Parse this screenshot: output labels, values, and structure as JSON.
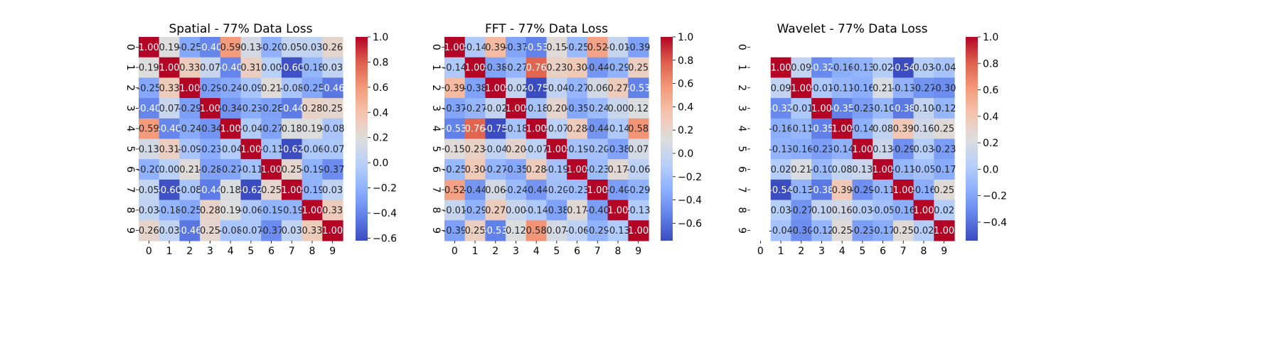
{
  "chart_data": [
    {
      "type": "heatmap",
      "title": "Spatial - 77% Data Loss",
      "x_categories": [
        "0",
        "1",
        "2",
        "3",
        "4",
        "5",
        "6",
        "7",
        "8",
        "9"
      ],
      "y_categories": [
        "0",
        "1",
        "2",
        "3",
        "4",
        "5",
        "6",
        "7",
        "8",
        "9"
      ],
      "vmin": -0.62,
      "vmax": 1.0,
      "colorbar_ticks": [
        -0.6,
        -0.4,
        -0.2,
        0.0,
        0.2,
        0.4,
        0.6,
        0.8,
        1.0
      ],
      "colorbar_tick_labels": [
        "−0.6",
        "−0.4",
        "−0.2",
        "0.0",
        "0.2",
        "0.4",
        "0.6",
        "0.8",
        "1.0"
      ],
      "values": [
        [
          1.0,
          0.19,
          -0.25,
          -0.4,
          0.59,
          0.13,
          -0.2,
          0.05,
          0.03,
          0.26
        ],
        [
          0.19,
          1.0,
          0.33,
          0.07,
          -0.4,
          0.31,
          0.0,
          -0.6,
          -0.18,
          0.03
        ],
        [
          -0.25,
          0.33,
          1.0,
          -0.29,
          -0.24,
          -0.09,
          0.21,
          -0.08,
          -0.25,
          -0.46
        ],
        [
          -0.4,
          0.07,
          -0.29,
          1.0,
          -0.34,
          -0.23,
          -0.28,
          -0.44,
          0.28,
          0.25
        ],
        [
          0.59,
          -0.4,
          -0.24,
          -0.34,
          1.0,
          -0.04,
          -0.27,
          0.18,
          0.19,
          -0.08
        ],
        [
          0.13,
          0.31,
          -0.09,
          -0.23,
          -0.04,
          1.0,
          -0.11,
          -0.62,
          -0.06,
          -0.07
        ],
        [
          -0.2,
          0.0,
          0.21,
          -0.28,
          -0.27,
          -0.11,
          1.0,
          0.25,
          -0.19,
          -0.37
        ],
        [
          0.05,
          -0.6,
          -0.08,
          -0.44,
          0.18,
          -0.62,
          0.25,
          1.0,
          -0.19,
          0.03
        ],
        [
          0.03,
          -0.18,
          -0.25,
          0.28,
          0.19,
          -0.06,
          -0.19,
          -0.19,
          1.0,
          0.33
        ],
        [
          0.26,
          0.03,
          -0.46,
          0.25,
          -0.08,
          -0.07,
          -0.37,
          0.03,
          0.33,
          1.0
        ]
      ]
    },
    {
      "type": "heatmap",
      "title": "FFT - 77% Data Loss",
      "x_categories": [
        "0",
        "1",
        "2",
        "3",
        "4",
        "5",
        "6",
        "7",
        "8",
        "9"
      ],
      "y_categories": [
        "0",
        "1",
        "2",
        "3",
        "4",
        "5",
        "6",
        "7",
        "8",
        "9"
      ],
      "vmin": -0.75,
      "vmax": 1.0,
      "colorbar_ticks": [
        -0.6,
        -0.4,
        -0.2,
        0.0,
        0.2,
        0.4,
        0.6,
        0.8,
        1.0
      ],
      "colorbar_tick_labels": [
        "−0.6",
        "−0.4",
        "−0.2",
        "0.0",
        "0.2",
        "0.4",
        "0.6",
        "0.8",
        "1.0"
      ],
      "values": [
        [
          1.0,
          -0.14,
          0.39,
          -0.37,
          -0.53,
          0.15,
          -0.25,
          0.52,
          -0.01,
          -0.39
        ],
        [
          -0.14,
          1.0,
          -0.38,
          -0.27,
          0.76,
          0.23,
          0.3,
          -0.44,
          -0.29,
          0.25
        ],
        [
          0.39,
          -0.38,
          1.0,
          -0.02,
          -0.75,
          -0.04,
          -0.27,
          0.06,
          0.27,
          -0.53
        ],
        [
          -0.37,
          -0.27,
          -0.02,
          1.0,
          -0.18,
          0.2,
          -0.35,
          -0.24,
          0.0,
          0.12
        ],
        [
          -0.53,
          0.76,
          -0.75,
          -0.18,
          1.0,
          -0.07,
          0.28,
          -0.44,
          -0.14,
          0.58
        ],
        [
          0.15,
          0.23,
          -0.04,
          0.2,
          -0.07,
          1.0,
          -0.19,
          -0.2,
          -0.38,
          0.07
        ],
        [
          -0.25,
          0.3,
          -0.27,
          -0.35,
          0.28,
          -0.19,
          1.0,
          -0.23,
          0.17,
          -0.06
        ],
        [
          0.52,
          -0.44,
          0.06,
          -0.24,
          -0.44,
          -0.2,
          -0.23,
          1.0,
          -0.4,
          -0.29
        ],
        [
          -0.01,
          -0.29,
          0.27,
          0.0,
          -0.14,
          -0.38,
          0.17,
          -0.4,
          1.0,
          -0.13
        ],
        [
          -0.39,
          0.25,
          -0.53,
          0.12,
          0.58,
          0.07,
          -0.06,
          -0.29,
          -0.13,
          1.0
        ]
      ]
    },
    {
      "type": "heatmap",
      "title": "Wavelet - 77% Data Loss",
      "x_categories": [
        "0",
        "1",
        "2",
        "3",
        "4",
        "5",
        "6",
        "7",
        "8",
        "9"
      ],
      "y_categories": [
        "0",
        "1",
        "2",
        "3",
        "4",
        "5",
        "6",
        "7",
        "8",
        "9"
      ],
      "vmin": -0.54,
      "vmax": 1.0,
      "colorbar_ticks": [
        -0.4,
        -0.2,
        0.0,
        0.2,
        0.4,
        0.6,
        0.8,
        1.0
      ],
      "colorbar_tick_labels": [
        "−0.4",
        "−0.2",
        "0.0",
        "0.2",
        "0.4",
        "0.6",
        "0.8",
        "1.0"
      ],
      "values": [
        [
          null,
          null,
          null,
          null,
          null,
          null,
          null,
          null,
          null,
          null
        ],
        [
          null,
          1.0,
          0.09,
          -0.32,
          -0.16,
          -0.13,
          0.02,
          -0.54,
          0.03,
          -0.04
        ],
        [
          null,
          0.09,
          1.0,
          -0.01,
          -0.11,
          -0.16,
          0.21,
          -0.13,
          -0.27,
          -0.3
        ],
        [
          null,
          -0.32,
          -0.01,
          1.0,
          -0.35,
          -0.23,
          -0.1,
          -0.38,
          0.1,
          -0.12
        ],
        [
          null,
          -0.16,
          -0.11,
          -0.35,
          1.0,
          -0.14,
          0.08,
          0.39,
          0.16,
          0.25
        ],
        [
          null,
          -0.13,
          -0.16,
          -0.23,
          -0.14,
          1.0,
          0.13,
          -0.29,
          0.03,
          -0.23
        ],
        [
          null,
          0.02,
          0.21,
          -0.1,
          0.08,
          0.13,
          1.0,
          -0.11,
          -0.05,
          -0.17
        ],
        [
          null,
          -0.54,
          -0.13,
          -0.38,
          0.39,
          -0.29,
          -0.11,
          1.0,
          -0.16,
          0.25
        ],
        [
          null,
          0.03,
          -0.27,
          0.1,
          0.16,
          0.03,
          -0.05,
          -0.16,
          1.0,
          0.02
        ],
        [
          null,
          -0.04,
          -0.3,
          -0.12,
          0.25,
          -0.23,
          -0.17,
          0.25,
          0.02,
          1.0
        ]
      ]
    }
  ]
}
